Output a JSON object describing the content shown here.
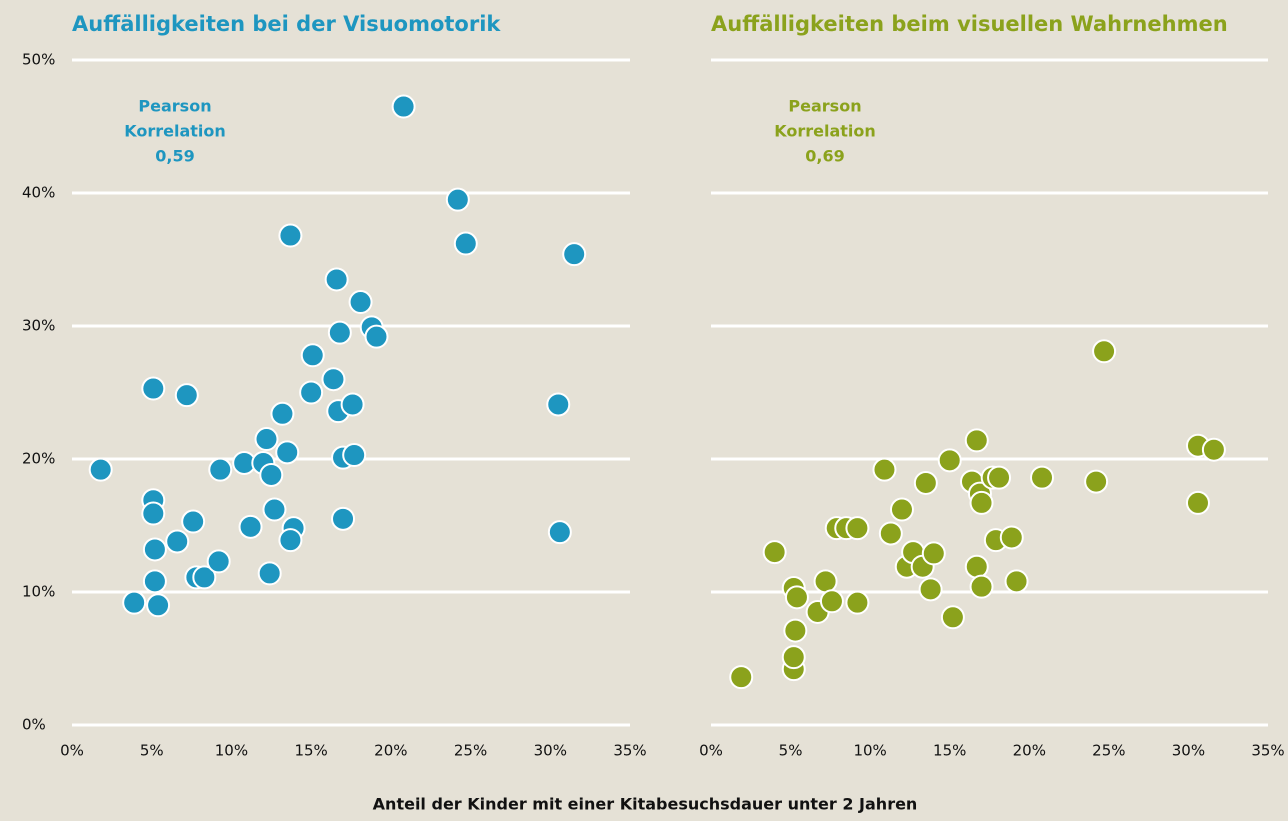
{
  "xlabel": "Anteil der Kinder mit einer Kitabesuchsdauer unter 2 Jahren",
  "chart_data": [
    {
      "type": "scatter",
      "title": "Auffälligkeiten bei der Visuomotorik",
      "annotation": [
        "Pearson",
        "Korrelation",
        "0,59"
      ],
      "color": "#1e96c0",
      "x": [
        1.8,
        3.9,
        5.1,
        5.1,
        5.1,
        5.2,
        5.2,
        5.4,
        6.6,
        7.2,
        7.6,
        7.8,
        8.3,
        9.2,
        9.3,
        10.8,
        11.2,
        12.2,
        12.0,
        12.4,
        12.5,
        12.7,
        13.2,
        13.5,
        13.7,
        13.9,
        13.7,
        15.0,
        15.1,
        16.4,
        16.6,
        16.8,
        16.7,
        17.0,
        17.0,
        17.6,
        17.7,
        18.1,
        18.8,
        19.1,
        20.8,
        24.2,
        24.7,
        30.5,
        30.6,
        31.5
      ],
      "y": [
        19.2,
        9.2,
        16.9,
        15.9,
        25.3,
        13.2,
        10.8,
        9.0,
        13.8,
        24.8,
        15.3,
        11.1,
        11.1,
        12.3,
        19.2,
        19.7,
        14.9,
        21.5,
        19.7,
        11.4,
        18.8,
        16.2,
        23.4,
        20.5,
        36.8,
        14.8,
        13.9,
        25.0,
        27.8,
        26.0,
        33.5,
        29.5,
        23.6,
        20.1,
        15.5,
        24.1,
        20.3,
        31.8,
        29.9,
        29.2,
        46.5,
        39.5,
        36.2,
        24.1,
        14.5,
        35.4
      ],
      "xlim": [
        0,
        35
      ],
      "ylim": [
        0,
        50
      ],
      "xticks": [
        {
          "value": 0,
          "label": "0%"
        },
        {
          "value": 5,
          "label": "5%"
        },
        {
          "value": 10,
          "label": "10%"
        },
        {
          "value": 15,
          "label": "15%"
        },
        {
          "value": 20,
          "label": "20%"
        },
        {
          "value": 25,
          "label": "25%"
        },
        {
          "value": 30,
          "label": "30%"
        },
        {
          "value": 35,
          "label": "35%"
        }
      ],
      "yticks": [
        {
          "value": 0,
          "label": "0%"
        },
        {
          "value": 10,
          "label": "10%"
        },
        {
          "value": 20,
          "label": "20%"
        },
        {
          "value": 30,
          "label": "30%"
        },
        {
          "value": 40,
          "label": "40%"
        },
        {
          "value": 50,
          "label": "50%"
        }
      ],
      "grid": true
    },
    {
      "type": "scatter",
      "title": "Auffälligkeiten beim visuellen Wahrnehmen",
      "annotation": [
        "Pearson",
        "Korrelation",
        "0,69"
      ],
      "color": "#8ba21c",
      "x": [
        1.9,
        4.0,
        5.2,
        5.2,
        5.2,
        5.3,
        5.4,
        6.7,
        7.2,
        7.6,
        7.9,
        8.5,
        9.2,
        9.2,
        10.9,
        11.3,
        12.0,
        12.3,
        12.7,
        13.3,
        13.5,
        13.8,
        14.0,
        15.0,
        15.2,
        16.4,
        16.7,
        16.7,
        16.9,
        17.0,
        17.0,
        17.7,
        17.9,
        18.1,
        18.9,
        19.2,
        20.8,
        24.2,
        24.7,
        30.6,
        31.6,
        30.6
      ],
      "y": [
        3.6,
        13.0,
        10.3,
        4.2,
        5.1,
        7.1,
        9.6,
        8.5,
        10.8,
        9.3,
        14.8,
        14.8,
        14.8,
        9.2,
        19.2,
        14.4,
        16.2,
        11.9,
        13.0,
        11.9,
        18.2,
        10.2,
        12.9,
        19.9,
        8.1,
        18.3,
        21.4,
        11.9,
        17.4,
        16.7,
        10.4,
        18.6,
        13.9,
        18.6,
        14.1,
        10.8,
        18.6,
        18.3,
        28.1,
        21.0,
        20.7,
        16.7
      ],
      "xlim": [
        0,
        35
      ],
      "ylim": [
        0,
        50
      ],
      "xticks": [
        {
          "value": 0,
          "label": "0%"
        },
        {
          "value": 5,
          "label": "5%"
        },
        {
          "value": 10,
          "label": "10%"
        },
        {
          "value": 15,
          "label": "15%"
        },
        {
          "value": 20,
          "label": "20%"
        },
        {
          "value": 25,
          "label": "25%"
        },
        {
          "value": 30,
          "label": "30%"
        },
        {
          "value": 35,
          "label": "35%"
        }
      ],
      "grid": true
    }
  ]
}
